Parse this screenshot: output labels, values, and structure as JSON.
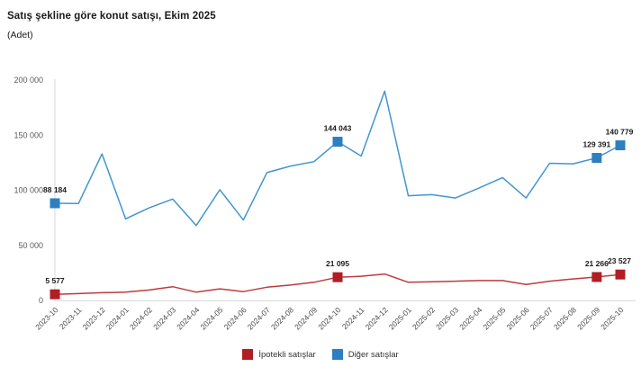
{
  "header": {
    "title": "Satış şekline göre konut satışı, Ekim 2025",
    "subtitle": "(Adet)"
  },
  "legend": {
    "items": [
      {
        "label": "İpotekli satışlar",
        "color": "#b01e24"
      },
      {
        "label": "Diğer satışlar",
        "color": "#2e7fc0"
      }
    ]
  },
  "chart_data": {
    "type": "line",
    "title": "Satış şekline göre konut satışı, Ekim 2025",
    "subtitle": "(Adet)",
    "ylabel": "Adet",
    "xlabel": "",
    "ylim": [
      0,
      200000
    ],
    "grid": false,
    "legend_position": "bottom",
    "axis_color": "#d9d9d9",
    "tick_color": "#595959",
    "xtick_color": "#4d4d4d",
    "data_label_color": "#1a1a1a",
    "yticks": [
      {
        "value": 0,
        "label": "0"
      },
      {
        "value": 50000,
        "label": "50 000"
      },
      {
        "value": 100000,
        "label": "100 000"
      },
      {
        "value": 150000,
        "label": "150 000"
      },
      {
        "value": 200000,
        "label": "200 000"
      }
    ],
    "categories": [
      "2023-10",
      "2023-11",
      "2023-12",
      "2024-01",
      "2024-02",
      "2024-03",
      "2024-04",
      "2024-05",
      "2024-06",
      "2024-07",
      "2024-08",
      "2024-09",
      "2024-10",
      "2024-11",
      "2024-12",
      "2025-01",
      "2025-02",
      "2025-03",
      "2025-04",
      "2025-05",
      "2025-06",
      "2025-07",
      "2025-08",
      "2025-09",
      "2025-10"
    ],
    "series": [
      {
        "name": "İpotekli satışlar",
        "marker_color": "#b01e24",
        "line_color": "#be3a3e",
        "values": [
          5577,
          6200,
          7000,
          7500,
          9500,
          12500,
          7500,
          10500,
          8000,
          12000,
          14000,
          16500,
          21095,
          22000,
          24000,
          16500,
          17000,
          17500,
          18000,
          18000,
          14500,
          17500,
          19500,
          21266,
          23527
        ]
      },
      {
        "name": "Diğer satışlar",
        "marker_color": "#2e7fc0",
        "line_color": "#4195d3",
        "values": [
          88184,
          88000,
          133000,
          74000,
          84000,
          92000,
          68000,
          100500,
          73000,
          116000,
          122000,
          126000,
          144043,
          131000,
          190000,
          95000,
          96000,
          93000,
          102000,
          111500,
          93000,
          124500,
          124000,
          129391,
          140779
        ]
      }
    ],
    "labeled_points": [
      {
        "series": 0,
        "index": 0,
        "label": "5 577"
      },
      {
        "series": 0,
        "index": 12,
        "label": "21 095"
      },
      {
        "series": 0,
        "index": 23,
        "label": "21 266"
      },
      {
        "series": 0,
        "index": 24,
        "label": "23 527"
      },
      {
        "series": 1,
        "index": 0,
        "label": "88 184"
      },
      {
        "series": 1,
        "index": 12,
        "label": "144 043"
      },
      {
        "series": 1,
        "index": 23,
        "label": "129 391"
      },
      {
        "series": 1,
        "index": 24,
        "label": "140 779"
      }
    ]
  }
}
